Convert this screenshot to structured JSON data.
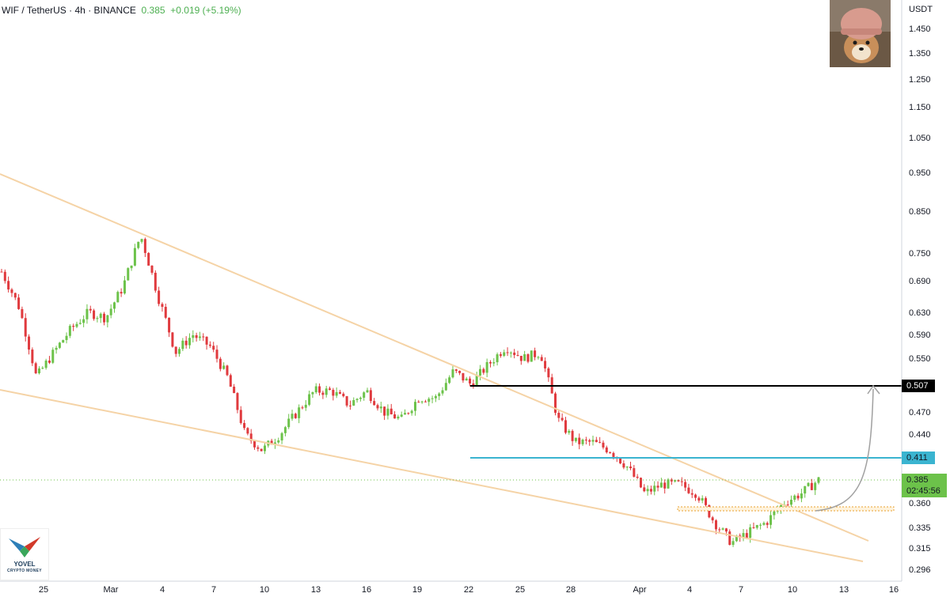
{
  "header": {
    "symbol": "WIF / TetherUS",
    "interval": "4h",
    "exchange": "BINANCE",
    "price": "0.385",
    "change": "+0.019 (+5.19%)"
  },
  "currency": "USDT",
  "logo": {
    "line1": "YOVEL",
    "line2": "CRYPTO MONEY"
  },
  "price_axis": {
    "ticks": [
      "1.450",
      "1.350",
      "1.250",
      "1.150",
      "1.050",
      "0.950",
      "0.850",
      "0.750",
      "0.690",
      "0.630",
      "0.590",
      "0.550",
      "0.470",
      "0.440",
      "0.360",
      "0.335",
      "0.315",
      "0.296"
    ]
  },
  "price_tags": {
    "resistance": "0.507",
    "cyan_level": "0.411",
    "current_price": "0.385",
    "countdown": "02:45:56"
  },
  "time_axis": {
    "labels": [
      "25",
      "Mar",
      "4",
      "7",
      "10",
      "13",
      "16",
      "19",
      "22",
      "25",
      "28",
      "Apr",
      "4",
      "7",
      "10",
      "13",
      "16"
    ]
  },
  "colors": {
    "up": "#6cc24a",
    "down": "#e03a3e",
    "trendline": "#f5d3a6",
    "resistance": "#000000",
    "cyan_level": "#3ab4d0",
    "current_tag": "#6cc24a",
    "projection": "#a0a0a0"
  },
  "chart_data": {
    "type": "candlestick",
    "symbol": "WIF/USDT",
    "interval": "4h",
    "scale": "log",
    "ylim": [
      0.29,
      1.5
    ],
    "horizontal_levels": [
      {
        "price": 0.507,
        "color": "black"
      },
      {
        "price": 0.411,
        "color": "cyan"
      },
      {
        "price": 0.385,
        "style": "dotted"
      }
    ],
    "path_close": [
      [
        "25",
        0.71
      ],
      [
        "26",
        0.64
      ],
      [
        "27",
        0.52
      ],
      [
        "28",
        0.56
      ],
      [
        "29",
        0.6
      ],
      [
        "Mar",
        0.63
      ],
      [
        "2",
        0.62
      ],
      [
        "3",
        0.68
      ],
      [
        "4",
        0.79
      ],
      [
        "5",
        0.66
      ],
      [
        "6",
        0.56
      ],
      [
        "7",
        0.59
      ],
      [
        "8",
        0.57
      ],
      [
        "9",
        0.52
      ],
      [
        "10",
        0.44
      ],
      [
        "11",
        0.42
      ],
      [
        "12",
        0.44
      ],
      [
        "13",
        0.47
      ],
      [
        "14",
        0.5
      ],
      [
        "15",
        0.5
      ],
      [
        "16",
        0.48
      ],
      [
        "17",
        0.5
      ],
      [
        "18",
        0.47
      ],
      [
        "19",
        0.46
      ],
      [
        "20",
        0.49
      ],
      [
        "21",
        0.49
      ],
      [
        "22",
        0.53
      ],
      [
        "23",
        0.51
      ],
      [
        "24",
        0.54
      ],
      [
        "25",
        0.57
      ],
      [
        "26",
        0.55
      ],
      [
        "27",
        0.56
      ],
      [
        "28",
        0.46
      ],
      [
        "29",
        0.43
      ],
      [
        "30",
        0.43
      ],
      [
        "31",
        0.42
      ],
      [
        "Apr",
        0.4
      ],
      [
        "2",
        0.37
      ],
      [
        "3",
        0.38
      ],
      [
        "4",
        0.38
      ],
      [
        "5",
        0.37
      ],
      [
        "6",
        0.34
      ],
      [
        "7",
        0.32
      ],
      [
        "8",
        0.33
      ],
      [
        "9",
        0.34
      ],
      [
        "10",
        0.36
      ],
      [
        "11",
        0.37
      ],
      [
        "12",
        0.385
      ]
    ]
  }
}
